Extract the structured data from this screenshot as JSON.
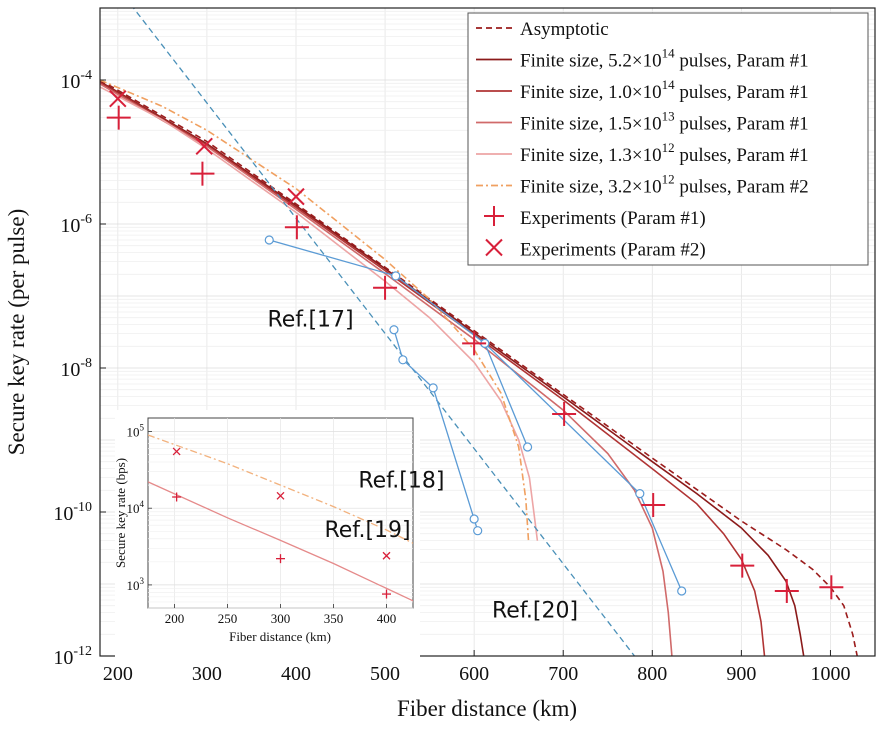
{
  "chart_data": {
    "type": "line",
    "xlabel": "Fiber distance (km)",
    "ylabel": "Secure key rate (per pulse)",
    "xlim": [
      180,
      1050
    ],
    "ylim": [
      1e-12,
      0.001
    ],
    "yscale": "log",
    "grid": true,
    "legend_position": "top-right",
    "x_ticks": [
      200,
      300,
      400,
      500,
      600,
      700,
      800,
      900,
      1000
    ],
    "y_ticks": [
      {
        "value": 0.0001,
        "base": "10",
        "exp": "-4"
      },
      {
        "value": 1e-06,
        "base": "10",
        "exp": "-6"
      },
      {
        "value": 1e-08,
        "base": "10",
        "exp": "-8"
      },
      {
        "value": 1e-10,
        "base": "10",
        "exp": "-10"
      },
      {
        "value": 1e-12,
        "base": "10",
        "exp": "-12"
      }
    ],
    "legend": [
      {
        "key": "asymptotic",
        "text": "Asymptotic",
        "kind": "dashed",
        "color": "#9b1c1c"
      },
      {
        "key": "fs1",
        "pre": "Finite size, 5.2×10",
        "sup": "14",
        "post": " pulses, Param #1",
        "kind": "line",
        "color": "#8b1a1a"
      },
      {
        "key": "fs2",
        "pre": "Finite size, 1.0×10",
        "sup": "14",
        "post": " pulses, Param #1",
        "kind": "line",
        "color": "#b03434"
      },
      {
        "key": "fs3",
        "pre": "Finite size, 1.5×10",
        "sup": "13",
        "post": " pulses, Param #1",
        "kind": "line",
        "color": "#d06a6a"
      },
      {
        "key": "fs4",
        "pre": "Finite size, 1.3×10",
        "sup": "12",
        "post": " pulses, Param #1",
        "kind": "line",
        "color": "#eda5a5"
      },
      {
        "key": "fs5",
        "pre": "Finite size, 3.2×10",
        "sup": "12",
        "post": " pulses, Param #2",
        "kind": "dashdot",
        "color": "#f0a060"
      },
      {
        "key": "exp1",
        "text": "Experiments (Param #1)",
        "kind": "plus",
        "color": "#d8203a"
      },
      {
        "key": "exp2",
        "text": "Experiments (Param #2)",
        "kind": "cross",
        "color": "#d8203a"
      }
    ],
    "series": [
      {
        "key": "asymptotic",
        "style": "dashed",
        "color": "#9b1c1c",
        "points": [
          [
            180,
            0.0001
          ],
          [
            300,
            1.4e-05
          ],
          [
            400,
            1.9e-06
          ],
          [
            500,
            2.5e-07
          ],
          [
            600,
            3.3e-08
          ],
          [
            700,
            4.3e-09
          ],
          [
            800,
            5.6e-10
          ],
          [
            900,
            7.5e-11
          ],
          [
            950,
            3e-11
          ],
          [
            980,
            1.6e-11
          ],
          [
            1000,
            9e-12
          ],
          [
            1015,
            5e-12
          ],
          [
            1025,
            2e-12
          ],
          [
            1030,
            1e-12
          ]
        ]
      },
      {
        "key": "fs1",
        "style": "solid",
        "color": "#8b1a1a",
        "points": [
          [
            180,
            9.5e-05
          ],
          [
            300,
            1.3e-05
          ],
          [
            400,
            1.8e-06
          ],
          [
            500,
            2.4e-07
          ],
          [
            600,
            3.1e-08
          ],
          [
            700,
            4e-09
          ],
          [
            800,
            5e-10
          ],
          [
            850,
            1.8e-10
          ],
          [
            900,
            6e-11
          ],
          [
            930,
            2.5e-11
          ],
          [
            950,
            1.1e-11
          ],
          [
            960,
            5e-12
          ],
          [
            966,
            2e-12
          ],
          [
            970,
            1e-12
          ]
        ]
      },
      {
        "key": "fs2",
        "style": "solid",
        "color": "#b03434",
        "points": [
          [
            180,
            9.2e-05
          ],
          [
            300,
            1.25e-05
          ],
          [
            400,
            1.7e-06
          ],
          [
            500,
            2.25e-07
          ],
          [
            600,
            2.9e-08
          ],
          [
            700,
            3.6e-09
          ],
          [
            800,
            4e-10
          ],
          [
            850,
            1.3e-10
          ],
          [
            880,
            5e-11
          ],
          [
            900,
            2.2e-11
          ],
          [
            915,
            8e-12
          ],
          [
            922,
            3e-12
          ],
          [
            926,
            1e-12
          ]
        ]
      },
      {
        "key": "fs3",
        "style": "solid",
        "color": "#d06a6a",
        "points": [
          [
            180,
            8.8e-05
          ],
          [
            300,
            1.2e-05
          ],
          [
            400,
            1.6e-06
          ],
          [
            500,
            2.05e-07
          ],
          [
            600,
            2.5e-08
          ],
          [
            700,
            2.6e-09
          ],
          [
            750,
            6.5e-10
          ],
          [
            780,
            2e-10
          ],
          [
            800,
            6e-11
          ],
          [
            812,
            1.5e-11
          ],
          [
            818,
            4e-12
          ],
          [
            822,
            1e-12
          ]
        ]
      },
      {
        "key": "fs4",
        "style": "solid",
        "color": "#eda5a5",
        "points": [
          [
            180,
            8e-05
          ],
          [
            250,
            2.8e-05
          ],
          [
            300,
            1.1e-05
          ],
          [
            400,
            1.45e-06
          ],
          [
            500,
            1.6e-07
          ],
          [
            550,
            5e-08
          ],
          [
            600,
            1.2e-08
          ],
          [
            630,
            3.5e-09
          ],
          [
            650,
            1e-09
          ],
          [
            662,
            3e-10
          ],
          [
            668,
            8e-11
          ],
          [
            671,
            4e-11
          ]
        ]
      },
      {
        "key": "fs5",
        "style": "dashdot",
        "color": "#f0a060",
        "points": [
          [
            180,
            0.0001
          ],
          [
            250,
            4.3e-05
          ],
          [
            300,
            2e-05
          ],
          [
            400,
            3.1e-06
          ],
          [
            500,
            3.2e-07
          ],
          [
            550,
            9e-08
          ],
          [
            600,
            1.8e-08
          ],
          [
            630,
            4.5e-09
          ],
          [
            650,
            8e-10
          ],
          [
            658,
            1.5e-10
          ],
          [
            661,
            4e-11
          ]
        ]
      }
    ],
    "experiments_param1": [
      [
        201,
        3e-05
      ],
      [
        295,
        5e-06
      ],
      [
        401,
        9e-07
      ],
      [
        500,
        1.3e-07
      ],
      [
        600,
        2.2e-08
      ],
      [
        701,
        2.3e-09
      ],
      [
        801,
        1.25e-10
      ],
      [
        901,
        1.8e-11
      ],
      [
        951,
        8e-12
      ],
      [
        1001,
        9e-12
      ]
    ],
    "experiments_param2": [
      [
        200,
        5.5e-05
      ],
      [
        297,
        1.2e-05
      ],
      [
        400,
        2.4e-06
      ]
    ],
    "reference_curves": [
      {
        "key": "plob",
        "style": "dashed",
        "color": "#4a90b8",
        "points": [
          [
            180,
            0.004
          ],
          [
            780,
            1e-12
          ]
        ]
      },
      {
        "key": "ref17",
        "label": "Ref.[17]",
        "label_pos": [
          368,
          3.8e-08
        ],
        "color": "#5b9bd5",
        "points": [
          [
            370,
            6e-07
          ],
          [
            512,
            1.9e-07
          ]
        ]
      },
      {
        "key": "ref18",
        "label": "Ref.[18]",
        "label_pos": [
          470,
          2.2e-10
        ],
        "color": "#5b9bd5",
        "points": [
          [
            512,
            1.9e-07
          ],
          [
            612,
            2.2e-08
          ],
          [
            660,
            8e-10
          ]
        ]
      },
      {
        "key": "ref19",
        "label": "Ref.[19]",
        "label_pos": [
          432,
          4.5e-11
        ],
        "color": "#5b9bd5",
        "points": [
          [
            510,
            3.4e-08
          ],
          [
            520,
            1.3e-08
          ],
          [
            554,
            5.3e-09
          ],
          [
            600,
            8e-11
          ],
          [
            604,
            5.5e-11
          ]
        ]
      },
      {
        "key": "ref20",
        "label": "Ref.[20]",
        "label_pos": [
          620,
          3.4e-12
        ],
        "color": "#5b9bd5",
        "points": [
          [
            612,
            2.2e-08
          ],
          [
            786,
            1.8e-10
          ],
          [
            833,
            8e-12
          ]
        ]
      }
    ],
    "inset": {
      "type": "line",
      "xlabel": "Fiber distance (km)",
      "ylabel": "Secure key rate (bps)",
      "xlim": [
        175,
        425
      ],
      "ylim": [
        500,
        150000
      ],
      "yscale": "log",
      "x_ticks": [
        200,
        250,
        300,
        350,
        400
      ],
      "y_ticks": [
        {
          "value": 1000,
          "base": "10",
          "exp": "3"
        },
        {
          "value": 10000,
          "base": "10",
          "exp": "4"
        },
        {
          "value": 100000,
          "base": "10",
          "exp": "5"
        }
      ],
      "series": [
        {
          "key": "inset_p1",
          "color": "#e58a8a",
          "style": "solid",
          "points": [
            [
              175,
              22000
            ],
            [
              250,
              7500
            ],
            [
              300,
              3800
            ],
            [
              350,
              1900
            ],
            [
              400,
              900
            ],
            [
              425,
              620
            ]
          ]
        },
        {
          "key": "inset_p2",
          "color": "#f2b27e",
          "style": "dashdot",
          "points": [
            [
              175,
              90000
            ],
            [
              250,
              38000
            ],
            [
              300,
              20000
            ],
            [
              350,
              10500
            ],
            [
              400,
              5200
            ],
            [
              425,
              3500
            ]
          ]
        }
      ],
      "experiments_param1": [
        [
          202,
          14000
        ],
        [
          300,
          2200
        ],
        [
          400,
          760
        ]
      ],
      "experiments_param2": [
        [
          202,
          55000
        ],
        [
          300,
          14500
        ],
        [
          400,
          2400
        ]
      ]
    }
  }
}
